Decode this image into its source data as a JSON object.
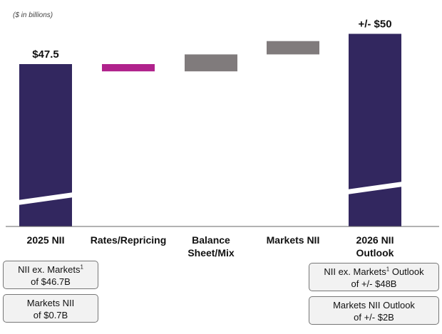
{
  "chart_data": {
    "type": "waterfall",
    "unit_note": "($ in billions)",
    "categories": [
      "2025 NII",
      "Rates/Repricing",
      "Balance Sheet/Mix",
      "Markets NII",
      "2026 NII Outlook"
    ],
    "category_lines": [
      [
        "2025 NII"
      ],
      [
        "Rates/Repricing"
      ],
      [
        "Balance",
        "Sheet/Mix"
      ],
      [
        "Markets NII"
      ],
      [
        "2026 NII",
        "Outlook"
      ]
    ],
    "bars": [
      {
        "name": "2025 NII",
        "kind": "total",
        "value": 47.5,
        "label": "$47.5",
        "color": "#32275f"
      },
      {
        "name": "Rates/Repricing",
        "kind": "delta",
        "start": 47.5,
        "end": 46.9,
        "color": "#b0228c"
      },
      {
        "name": "Balance Sheet/Mix",
        "kind": "delta",
        "start": 46.9,
        "end": 48.3,
        "color": "#807b7c"
      },
      {
        "name": "Markets NII",
        "kind": "delta",
        "start": 48.3,
        "end": 49.4,
        "color": "#807b7c"
      },
      {
        "name": "2026 NII Outlook",
        "kind": "total",
        "value": 50,
        "label": "+/- $50",
        "color": "#32275f"
      }
    ],
    "axis_break": true,
    "ylim": [
      40,
      51
    ]
  },
  "notes": {
    "left_1": {
      "pre": "NII ex. Markets",
      "sup": "1",
      "post": "of $46.7B"
    },
    "left_2": {
      "line1": "Markets NII",
      "line2": "of $0.7B"
    },
    "right_1": {
      "pre": "NII ex. Markets",
      "sup": "1",
      "mid": " Outlook",
      "post": "of +/- $48B"
    },
    "right_2": {
      "line1": "Markets NII Outlook",
      "line2": "of +/- $2B"
    }
  }
}
